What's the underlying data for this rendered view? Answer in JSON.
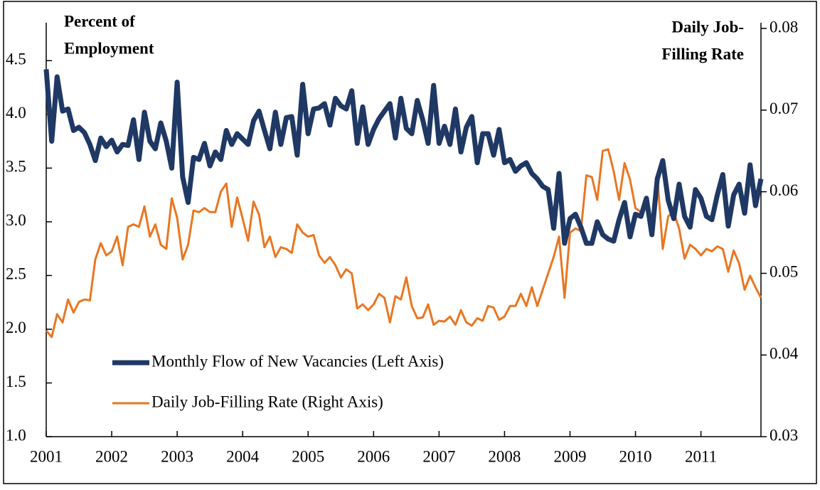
{
  "chart_data": {
    "type": "line",
    "y_label": [
      "Percent of",
      "Employment"
    ],
    "y2_label": [
      "Daily Job-",
      "Filling Rate"
    ],
    "categories": [
      "2001",
      null,
      null,
      null,
      null,
      null,
      null,
      null,
      null,
      null,
      null,
      null,
      "2002",
      null,
      null,
      null,
      null,
      null,
      null,
      null,
      null,
      null,
      null,
      null,
      "2003",
      null,
      null,
      null,
      null,
      null,
      null,
      null,
      null,
      null,
      null,
      null,
      "2004",
      null,
      null,
      null,
      null,
      null,
      null,
      null,
      null,
      null,
      null,
      null,
      "2005",
      null,
      null,
      null,
      null,
      null,
      null,
      null,
      null,
      null,
      null,
      null,
      "2006",
      null,
      null,
      null,
      null,
      null,
      null,
      null,
      null,
      null,
      null,
      null,
      "2007",
      null,
      null,
      null,
      null,
      null,
      null,
      null,
      null,
      null,
      null,
      null,
      "2008",
      null,
      null,
      null,
      null,
      null,
      null,
      null,
      null,
      null,
      null,
      null,
      "2009",
      null,
      null,
      null,
      null,
      null,
      null,
      null,
      null,
      null,
      null,
      null,
      "2010",
      null,
      null,
      null,
      null,
      null,
      null,
      null,
      null,
      null,
      null,
      null,
      "2011",
      null,
      null,
      null,
      null,
      null,
      null,
      null,
      null,
      null,
      null,
      null
    ],
    "series": [
      {
        "name": "Monthly Flow of New Vacancies (Left Axis)",
        "color": "#1f3864",
        "axis": "y",
        "values": [
          4.42,
          3.75,
          4.35,
          4.03,
          4.05,
          3.85,
          3.88,
          3.83,
          3.72,
          3.57,
          3.78,
          3.7,
          3.76,
          3.65,
          3.72,
          3.71,
          3.95,
          3.58,
          4.02,
          3.75,
          3.68,
          3.92,
          3.75,
          3.5,
          4.3,
          3.42,
          3.18,
          3.6,
          3.58,
          3.73,
          3.52,
          3.65,
          3.58,
          3.85,
          3.72,
          3.82,
          3.77,
          3.72,
          3.94,
          4.03,
          3.85,
          3.68,
          4.02,
          3.72,
          3.97,
          3.98,
          3.62,
          4.28,
          3.82,
          4.05,
          4.06,
          4.1,
          3.9,
          4.15,
          4.08,
          4.05,
          4.22,
          3.73,
          4.07,
          3.72,
          3.86,
          3.96,
          4.03,
          4.1,
          3.78,
          4.15,
          3.87,
          3.82,
          4.13,
          3.95,
          3.73,
          4.27,
          3.73,
          3.89,
          3.72,
          4.05,
          3.65,
          3.88,
          3.98,
          3.55,
          3.82,
          3.82,
          3.62,
          3.86,
          3.55,
          3.58,
          3.47,
          3.52,
          3.55,
          3.45,
          3.4,
          3.33,
          3.3,
          2.94,
          3.45,
          2.8,
          3.03,
          3.07,
          2.95,
          2.8,
          2.8,
          3.0,
          2.88,
          2.84,
          2.82,
          3.02,
          3.18,
          2.86,
          3.07,
          3.05,
          3.22,
          2.88,
          3.4,
          3.57,
          3.2,
          3.03,
          3.35,
          3.05,
          2.95,
          3.3,
          3.22,
          3.05,
          3.02,
          3.25,
          3.44,
          2.96,
          3.25,
          3.35,
          3.08,
          3.53,
          3.15,
          3.4
        ]
      },
      {
        "name": "Daily Job-Filling Rate (Right Axis)",
        "color": "#e87722",
        "axis": "y2",
        "values": [
          0.043,
          0.0422,
          0.045,
          0.044,
          0.0468,
          0.0452,
          0.0465,
          0.0468,
          0.0467,
          0.0517,
          0.0537,
          0.0522,
          0.0527,
          0.0545,
          0.051,
          0.0557,
          0.056,
          0.0557,
          0.0582,
          0.0545,
          0.056,
          0.0535,
          0.053,
          0.0592,
          0.0568,
          0.0517,
          0.0535,
          0.0577,
          0.0575,
          0.058,
          0.0575,
          0.0575,
          0.06,
          0.061,
          0.0557,
          0.0593,
          0.0567,
          0.054,
          0.0588,
          0.0572,
          0.0532,
          0.0545,
          0.052,
          0.0532,
          0.053,
          0.0525,
          0.056,
          0.055,
          0.0545,
          0.0547,
          0.0522,
          0.0513,
          0.052,
          0.051,
          0.0495,
          0.0505,
          0.05,
          0.0457,
          0.0462,
          0.0455,
          0.0462,
          0.0475,
          0.047,
          0.044,
          0.0472,
          0.0468,
          0.0495,
          0.046,
          0.0445,
          0.0446,
          0.0462,
          0.0437,
          0.0442,
          0.0441,
          0.0447,
          0.0437,
          0.0455,
          0.044,
          0.0436,
          0.0445,
          0.0442,
          0.046,
          0.0458,
          0.0443,
          0.0447,
          0.046,
          0.046,
          0.0475,
          0.046,
          0.0483,
          0.046,
          0.048,
          0.05,
          0.052,
          0.0545,
          0.047,
          0.055,
          0.0555,
          0.0552,
          0.062,
          0.0618,
          0.059,
          0.065,
          0.0652,
          0.0625,
          0.059,
          0.0635,
          0.0615,
          0.058,
          0.0575,
          0.0585,
          0.056,
          0.062,
          0.053,
          0.057,
          0.0575,
          0.0555,
          0.0518,
          0.0535,
          0.053,
          0.0522,
          0.053,
          0.0527,
          0.0533,
          0.053,
          0.0502,
          0.0528,
          0.0512,
          0.048,
          0.0497,
          0.0483,
          0.047
        ]
      }
    ],
    "ylim": [
      1.0,
      4.8
    ],
    "yticks": [
      {
        "value": 1,
        "label": "1.0"
      },
      1.5,
      {
        "value": 2,
        "label": "2.0"
      },
      2.5,
      {
        "value": 3,
        "label": "3.0"
      },
      3.5,
      {
        "value": 4,
        "label": "4.0"
      },
      4.5
    ],
    "y2lim": [
      0.03,
      0.08
    ],
    "y2ticks": [
      0.03,
      0.04,
      0.05,
      0.06,
      0.07,
      0.08
    ],
    "legend": "lower-left"
  }
}
